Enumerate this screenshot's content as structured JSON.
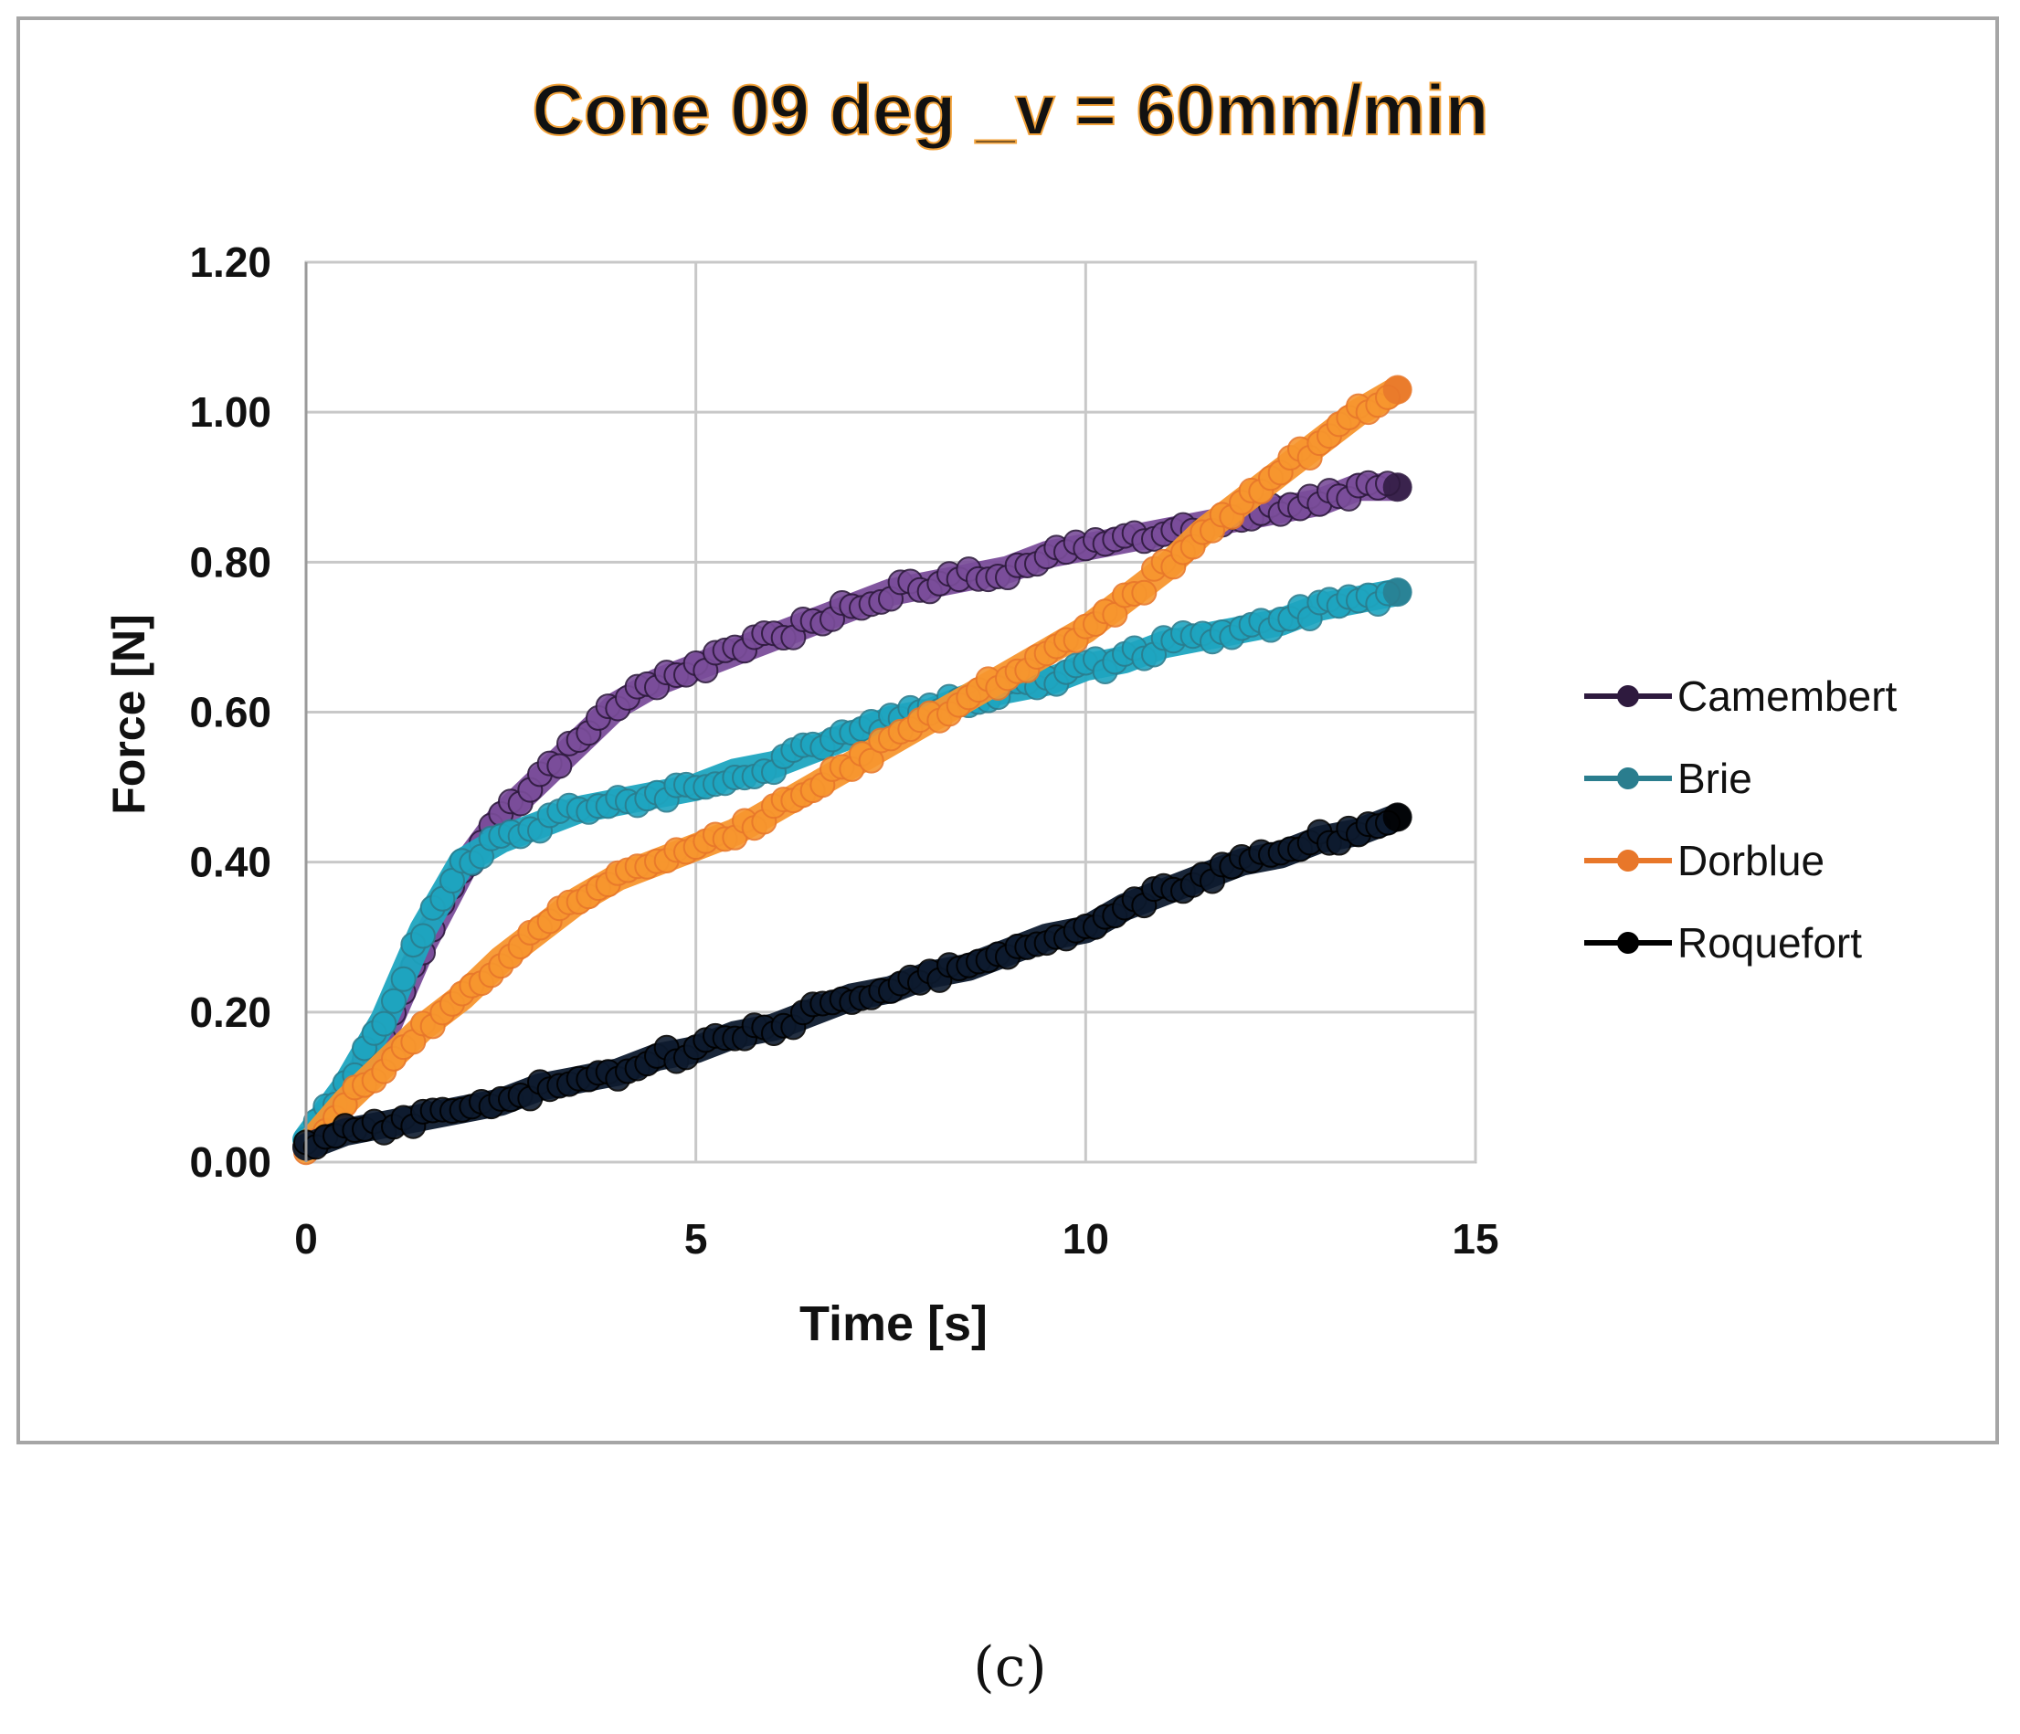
{
  "caption": "(c)",
  "chart_data": {
    "type": "scatter",
    "title": "Cone 09 deg _v = 60mm/min",
    "xlabel": "Time [s]",
    "ylabel": "Force [N]",
    "xlim": [
      0,
      15
    ],
    "ylim": [
      0,
      1.2
    ],
    "xticks": [
      0,
      5,
      10,
      15
    ],
    "yticks": [
      0,
      0.2,
      0.4,
      0.6,
      0.8,
      1.0,
      1.2
    ],
    "xtick_labels": [
      "0",
      "5",
      "10",
      "15"
    ],
    "ytick_labels": [
      "0.00",
      "0.20",
      "0.40",
      "0.60",
      "0.80",
      "1.00",
      "1.20"
    ],
    "grid": true,
    "legend_position": "right",
    "series": [
      {
        "name": "Camembert",
        "color": "#7a4d9a",
        "marker_color": "#2e1a3e",
        "x": [
          0,
          0.5,
          1,
          1.5,
          2,
          2.5,
          3,
          3.5,
          4,
          4.5,
          5,
          5.5,
          6,
          6.5,
          7,
          7.5,
          8,
          8.5,
          9,
          9.5,
          10,
          10.5,
          11,
          11.5,
          12,
          12.5,
          13,
          13.5,
          14
        ],
        "y": [
          0.02,
          0.09,
          0.17,
          0.29,
          0.39,
          0.46,
          0.51,
          0.56,
          0.61,
          0.64,
          0.66,
          0.68,
          0.7,
          0.72,
          0.74,
          0.76,
          0.77,
          0.78,
          0.79,
          0.81,
          0.82,
          0.83,
          0.84,
          0.85,
          0.86,
          0.87,
          0.88,
          0.9,
          0.9
        ]
      },
      {
        "name": "Brie",
        "color": "#1ea5c0",
        "marker_color": "#2a7d8e",
        "x": [
          0,
          0.5,
          1,
          1.5,
          2,
          2.5,
          3,
          3.5,
          4,
          4.5,
          5,
          5.5,
          6,
          6.5,
          7,
          7.5,
          8,
          8.5,
          9,
          9.5,
          10,
          10.5,
          11,
          11.5,
          12,
          12.5,
          13,
          13.5,
          14
        ],
        "y": [
          0.03,
          0.1,
          0.19,
          0.31,
          0.4,
          0.43,
          0.45,
          0.47,
          0.48,
          0.49,
          0.5,
          0.52,
          0.53,
          0.55,
          0.57,
          0.59,
          0.6,
          0.62,
          0.63,
          0.64,
          0.66,
          0.67,
          0.69,
          0.7,
          0.71,
          0.72,
          0.74,
          0.75,
          0.76
        ]
      },
      {
        "name": "Dorblue",
        "color": "#f7962e",
        "marker_color": "#e8772a",
        "x": [
          0,
          0.5,
          1,
          1.5,
          2,
          2.5,
          3,
          3.5,
          4,
          4.5,
          5,
          5.5,
          6,
          6.5,
          7,
          7.5,
          8,
          8.5,
          9,
          9.5,
          10,
          10.5,
          11,
          11.5,
          12,
          12.5,
          13,
          13.5,
          14
        ],
        "y": [
          0.02,
          0.08,
          0.13,
          0.18,
          0.22,
          0.27,
          0.31,
          0.35,
          0.38,
          0.4,
          0.42,
          0.44,
          0.47,
          0.5,
          0.53,
          0.56,
          0.59,
          0.62,
          0.65,
          0.68,
          0.71,
          0.75,
          0.79,
          0.84,
          0.88,
          0.92,
          0.96,
          1.0,
          1.03
        ]
      },
      {
        "name": "Roquefort",
        "color": "#0d1a2e",
        "marker_color": "#000000",
        "x": [
          0,
          0.5,
          1,
          1.5,
          2,
          2.5,
          3,
          3.5,
          4,
          4.5,
          5,
          5.5,
          6,
          6.5,
          7,
          7.5,
          8,
          8.5,
          9,
          9.5,
          10,
          10.5,
          11,
          11.5,
          12,
          12.5,
          13,
          13.5,
          14
        ],
        "y": [
          0.02,
          0.04,
          0.05,
          0.06,
          0.07,
          0.08,
          0.1,
          0.11,
          0.12,
          0.14,
          0.15,
          0.17,
          0.18,
          0.2,
          0.22,
          0.23,
          0.25,
          0.26,
          0.28,
          0.3,
          0.31,
          0.34,
          0.36,
          0.38,
          0.4,
          0.41,
          0.43,
          0.44,
          0.46
        ]
      }
    ]
  }
}
